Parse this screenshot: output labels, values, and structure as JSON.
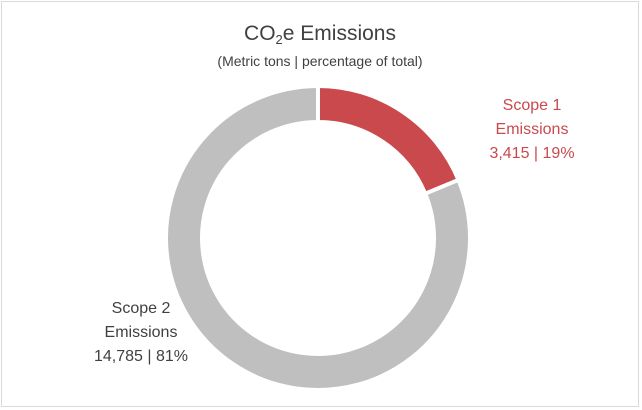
{
  "chart_data": {
    "type": "pie",
    "variant": "donut",
    "title_main": "CO",
    "title_subscript": "2",
    "title_suffix": "e Emissions",
    "subtitle": "(Metric tons | percentage of total)",
    "legend": "none",
    "series": [
      {
        "name_line1": "Scope 1",
        "name_line2": "Emissions",
        "value": 3415,
        "percent": 19,
        "value_label": "3,415 | 19%",
        "color": "#c9494d"
      },
      {
        "name_line1": "Scope 2",
        "name_line2": "Emissions",
        "value": 14785,
        "percent": 81,
        "value_label": "14,785 | 81%",
        "color": "#bfbfbf"
      }
    ]
  }
}
